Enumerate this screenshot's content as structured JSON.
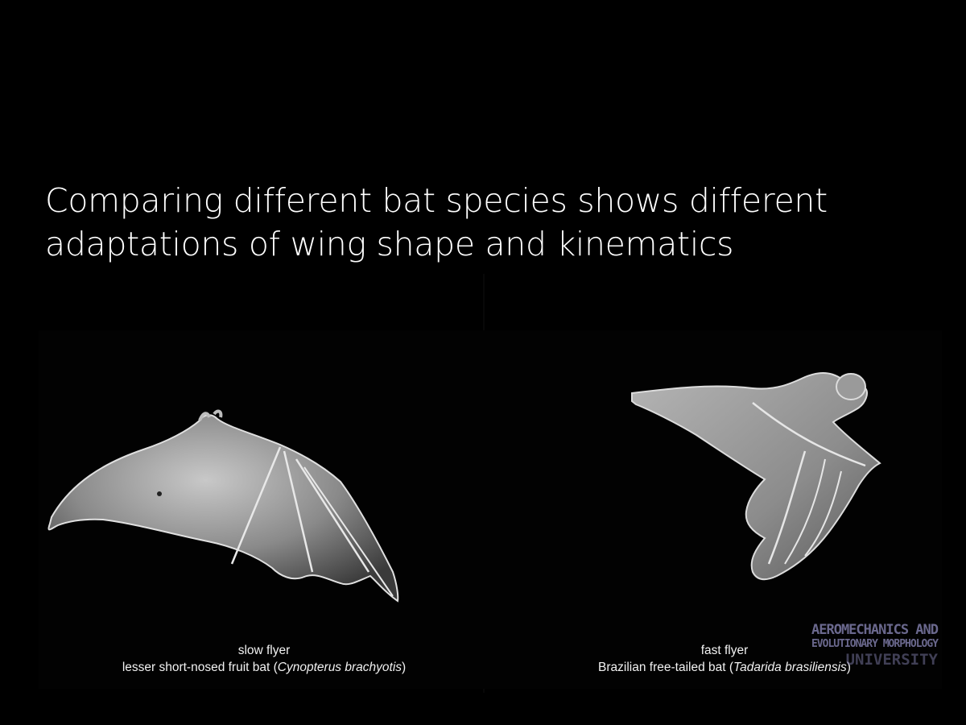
{
  "slide": {
    "title_line1": "Comparing different bat species shows different",
    "title_line2": "adaptations of wing shape and kinematics"
  },
  "left_panel": {
    "label": "slow flyer",
    "species_common": "lesser short-nosed fruit bat (",
    "species_latin": "Cynopterus brachyotis",
    "species_close": ")"
  },
  "right_panel": {
    "label": "fast flyer",
    "species_common": "Brazilian free-tailed bat (",
    "species_latin": "Tadarida brasiliensis",
    "species_close": ")"
  },
  "watermark": {
    "line1": "AEROMECHANICS AND",
    "line2": "EVOLUTIONARY MORPHOLOGY",
    "line3": "UNIVERSITY"
  },
  "colors": {
    "background": "#000000",
    "text": "#ffffff",
    "watermark": "#7d7aa6"
  }
}
